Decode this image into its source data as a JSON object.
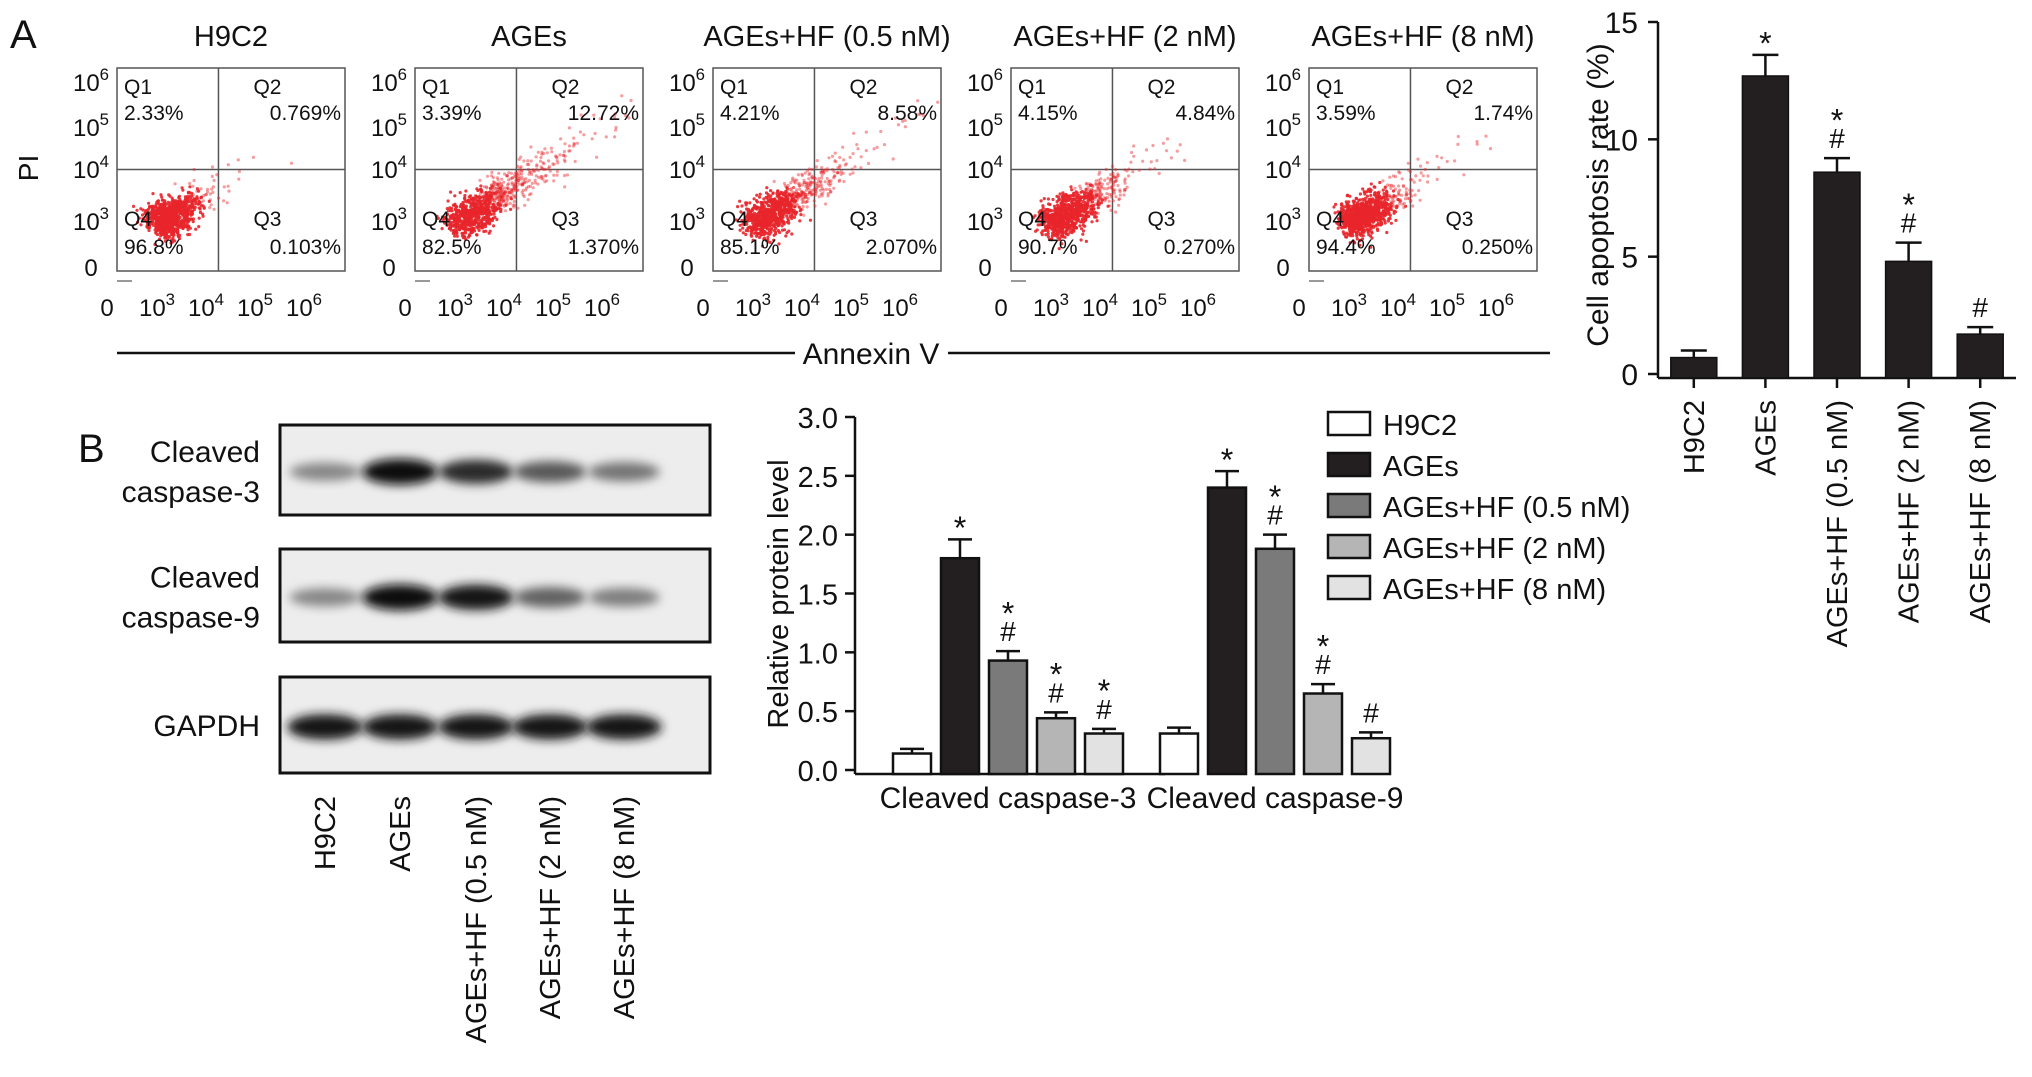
{
  "panels": {
    "a": "A",
    "b": "B"
  },
  "flow": {
    "x_label": "Annexin V",
    "y_label": "PI",
    "tick_labels": [
      "0",
      "10^3",
      "10^4",
      "10^5",
      "10^6"
    ],
    "quadrant_names": [
      "Q1",
      "Q2",
      "Q3",
      "Q4"
    ],
    "plots": [
      {
        "title": "H9C2",
        "q1": "2.33%",
        "q2": "0.769%",
        "q3": "0.103%",
        "q4": "96.8%",
        "spread": 0.2
      },
      {
        "title": "AGEs",
        "q1": "3.39%",
        "q2": "12.72%",
        "q3": "1.370%",
        "q4": "82.5%",
        "spread": 1.0
      },
      {
        "title": "AGEs+HF (0.5 nM)",
        "q1": "4.21%",
        "q2": "8.58%",
        "q3": "2.070%",
        "q4": "85.1%",
        "spread": 0.75
      },
      {
        "title": "AGEs+HF (2 nM)",
        "q1": "4.15%",
        "q2": "4.84%",
        "q3": "0.270%",
        "q4": "90.7%",
        "spread": 0.5
      },
      {
        "title": "AGEs+HF (8 nM)",
        "q1": "3.59%",
        "q2": "1.74%",
        "q3": "0.250%",
        "q4": "94.4%",
        "spread": 0.35
      }
    ],
    "dot_color": "#e8262b"
  },
  "chart_data": [
    {
      "type": "bar",
      "ylabel": "Cell apoptosis rate (%)",
      "ylim": [
        0,
        15
      ],
      "yticks": [
        0,
        5,
        10,
        15
      ],
      "categories": [
        "H9C2",
        "AGEs",
        "AGEs+HF (0.5 nM)",
        "AGEs+HF (2 nM)",
        "AGEs+HF (8 nM)"
      ],
      "values": [
        0.7,
        12.7,
        8.6,
        4.8,
        1.7
      ],
      "errors": [
        0.3,
        0.9,
        0.6,
        0.8,
        0.3
      ],
      "annotations": [
        "",
        "*",
        "*\n#",
        "*\n#",
        "#"
      ],
      "color": "#231f20"
    },
    {
      "type": "bar",
      "ylabel": "Relative protein level",
      "ylim": [
        0,
        3.0
      ],
      "yticks": [
        "0.0",
        "0.5",
        "1.0",
        "1.5",
        "2.0",
        "2.5",
        "3.0"
      ],
      "categories": [
        "Cleaved caspase-3",
        "Cleaved caspase-9"
      ],
      "series": [
        {
          "name": "H9C2",
          "values": [
            0.14,
            0.31
          ],
          "errors": [
            0.04,
            0.05
          ],
          "annotations": [
            "",
            ""
          ],
          "color": "#ffffff"
        },
        {
          "name": "AGEs",
          "values": [
            1.8,
            2.4
          ],
          "errors": [
            0.16,
            0.14
          ],
          "annotations": [
            "*",
            "*"
          ],
          "color": "#231f20"
        },
        {
          "name": "AGEs+HF (0.5 nM)",
          "values": [
            0.93,
            1.88
          ],
          "errors": [
            0.08,
            0.12
          ],
          "annotations": [
            "*\n#",
            "*\n#"
          ],
          "color": "#7a7a7a"
        },
        {
          "name": "AGEs+HF (2 nM)",
          "values": [
            0.44,
            0.65
          ],
          "errors": [
            0.05,
            0.08
          ],
          "annotations": [
            "*\n#",
            "*\n#"
          ],
          "color": "#b5b5b5"
        },
        {
          "name": "AGEs+HF (8 nM)",
          "values": [
            0.31,
            0.27
          ],
          "errors": [
            0.04,
            0.05
          ],
          "annotations": [
            "*\n#",
            "#"
          ],
          "color": "#e2e2e2"
        }
      ],
      "legend": "top-right"
    }
  ],
  "western": {
    "rows": [
      {
        "label": "Cleaved\ncaspase-3",
        "intensity": [
          0.35,
          1.0,
          0.85,
          0.6,
          0.45
        ]
      },
      {
        "label": "Cleaved\ncaspase-9",
        "intensity": [
          0.35,
          1.0,
          0.95,
          0.55,
          0.4
        ]
      },
      {
        "label": "GAPDH",
        "intensity": [
          0.95,
          0.95,
          0.95,
          0.95,
          0.95
        ]
      }
    ],
    "lanes": [
      "H9C2",
      "AGEs",
      "AGEs+HF (0.5 nM)",
      "AGEs+HF (2 nM)",
      "AGEs+HF (8 nM)"
    ]
  }
}
